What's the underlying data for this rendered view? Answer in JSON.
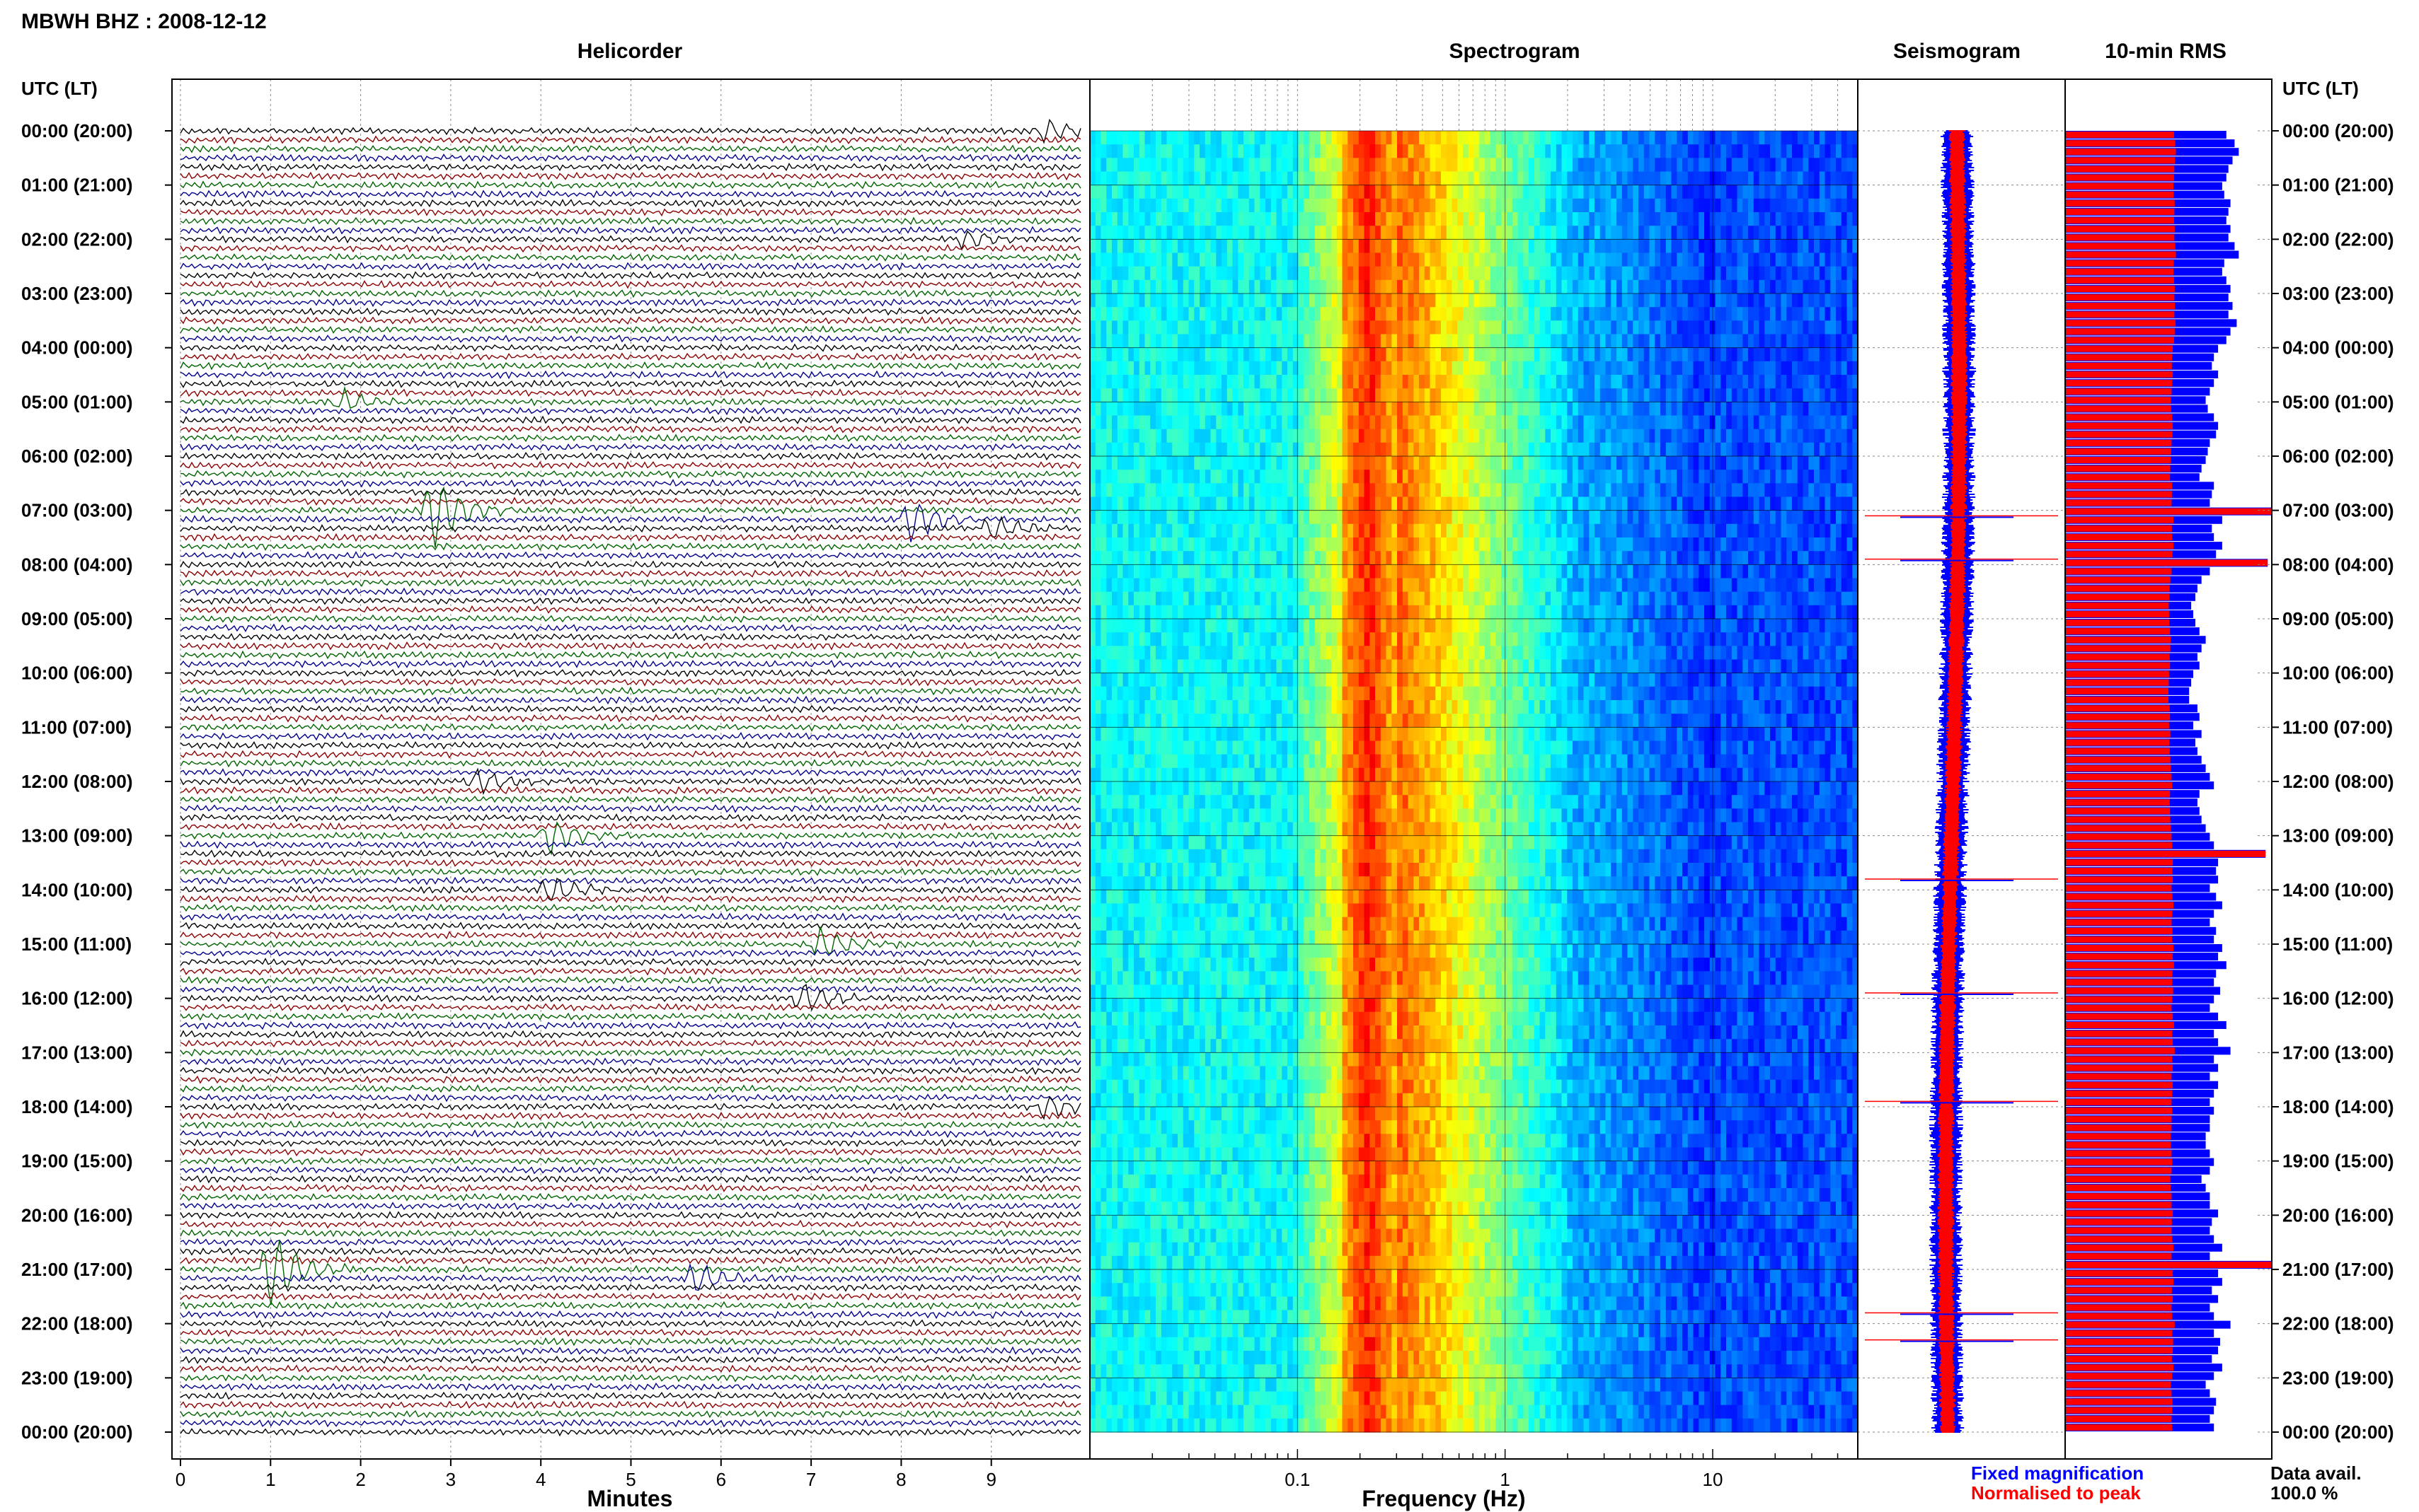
{
  "station_title": "MBWH BHZ : 2008-12-12",
  "panel_titles": {
    "helicorder": "Helicorder",
    "spectrogram": "Spectrogram",
    "seismogram": "Seismogram",
    "rms": "10-min RMS"
  },
  "time_axis_header": "UTC (LT)",
  "time_labels": [
    "00:00 (20:00)",
    "01:00 (21:00)",
    "02:00 (22:00)",
    "03:00 (23:00)",
    "04:00 (00:00)",
    "05:00 (01:00)",
    "06:00 (02:00)",
    "07:00 (03:00)",
    "08:00 (04:00)",
    "09:00 (05:00)",
    "10:00 (06:00)",
    "11:00 (07:00)",
    "12:00 (08:00)",
    "13:00 (09:00)",
    "14:00 (10:00)",
    "15:00 (11:00)",
    "16:00 (12:00)",
    "17:00 (13:00)",
    "18:00 (14:00)",
    "19:00 (15:00)",
    "20:00 (16:00)",
    "21:00 (17:00)",
    "22:00 (18:00)",
    "23:00 (19:00)",
    "00:00 (20:00)"
  ],
  "legend": {
    "fixed": "Fixed magnification",
    "normalised": "Normalised to peak",
    "avail_label": "Data avail.",
    "avail_value": "100.0 %"
  },
  "colors": {
    "trace_cycle": [
      "#000000",
      "#8b0000",
      "#006400",
      "#00008b"
    ],
    "fixed": "#0000ff",
    "normalised": "#ff0000",
    "axis": "#000000",
    "grid": "#888888"
  },
  "chart_data": [
    {
      "type": "line",
      "title": "Helicorder",
      "xlabel": "Minutes",
      "x_ticks": [
        0,
        1,
        2,
        3,
        4,
        5,
        6,
        7,
        8,
        9
      ],
      "xlim": [
        0,
        10
      ],
      "traces_per_hour": 6,
      "trace_minutes": 10,
      "events": [
        {
          "hour": 0,
          "minute": 9.6,
          "amp": 2.0
        },
        {
          "hour": 2,
          "minute": 8.7,
          "amp": 1.6
        },
        {
          "hour": 5,
          "minute": 1.8,
          "amp": 1.8
        },
        {
          "hour": 7,
          "minute": 2.8,
          "amp": 6.0
        },
        {
          "hour": 7,
          "minute": 8.1,
          "amp": 3.5
        },
        {
          "hour": 7,
          "minute": 9.0,
          "amp": 2.0
        },
        {
          "hour": 12,
          "minute": 3.3,
          "amp": 2.0
        },
        {
          "hour": 13,
          "minute": 4.1,
          "amp": 3.0
        },
        {
          "hour": 14,
          "minute": 4.1,
          "amp": 2.2
        },
        {
          "hour": 15,
          "minute": 7.1,
          "amp": 2.5
        },
        {
          "hour": 16,
          "minute": 6.9,
          "amp": 2.5
        },
        {
          "hour": 18,
          "minute": 9.6,
          "amp": 2.0
        },
        {
          "hour": 21,
          "minute": 1.0,
          "amp": 6.0
        },
        {
          "hour": 21,
          "minute": 5.7,
          "amp": 2.5
        }
      ]
    },
    {
      "type": "heatmap",
      "title": "Spectrogram",
      "xlabel": "Frequency (Hz)",
      "x_scale": "log",
      "xlim": [
        0.01,
        50
      ],
      "x_tick_labels": [
        {
          "value": 0.1,
          "label": "0.1"
        },
        {
          "value": 1,
          "label": "1"
        },
        {
          "value": 10,
          "label": "10"
        }
      ],
      "peak_band_hz": [
        0.17,
        0.3
      ],
      "colormap": "jet"
    },
    {
      "type": "line",
      "title": "Seismogram",
      "series": [
        {
          "name": "Fixed magnification",
          "color": "#0000ff"
        },
        {
          "name": "Normalised to peak",
          "color": "#ff0000"
        }
      ],
      "spikes_hours": [
        7.1,
        7.9,
        13.8,
        15.9,
        17.9,
        21.8,
        22.3
      ]
    },
    {
      "type": "bar",
      "title": "10-min RMS",
      "series": [
        {
          "name": "Fixed magnification",
          "color": "#0000ff"
        },
        {
          "name": "Normalised to peak",
          "color": "#ff0000"
        }
      ],
      "fixed_rms": [
        0.78,
        0.82,
        0.84,
        0.81,
        0.79,
        0.78,
        0.76,
        0.77,
        0.8,
        0.79,
        0.78,
        0.8,
        0.79,
        0.82,
        0.84,
        0.77,
        0.76,
        0.78,
        0.8,
        0.79,
        0.81,
        0.79,
        0.83,
        0.8,
        0.78,
        0.74,
        0.72,
        0.71,
        0.74,
        0.72,
        0.7,
        0.68,
        0.69,
        0.72,
        0.74,
        0.73,
        0.7,
        0.69,
        0.68,
        0.66,
        0.65,
        0.72,
        0.71,
        0.7,
        1.0,
        0.76,
        0.71,
        0.72,
        0.76,
        0.73,
        0.98,
        0.7,
        0.66,
        0.64,
        0.63,
        0.61,
        0.62,
        0.63,
        0.65,
        0.68,
        0.66,
        0.64,
        0.65,
        0.62,
        0.61,
        0.6,
        0.6,
        0.64,
        0.65,
        0.62,
        0.66,
        0.63,
        0.64,
        0.66,
        0.68,
        0.7,
        0.72,
        0.65,
        0.64,
        0.65,
        0.66,
        0.68,
        0.7,
        0.72,
        0.97,
        0.74,
        0.73,
        0.74,
        0.7,
        0.73,
        0.76,
        0.72,
        0.7,
        0.73,
        0.72,
        0.76,
        0.74,
        0.78,
        0.73,
        0.72,
        0.75,
        0.72,
        0.7,
        0.74,
        0.78,
        0.72,
        0.74,
        0.8,
        0.72,
        0.74,
        0.7,
        0.74,
        0.72,
        0.7,
        0.72,
        0.7,
        0.7,
        0.68,
        0.68,
        0.7,
        0.72,
        0.7,
        0.66,
        0.68,
        0.7,
        0.7,
        0.74,
        0.71,
        0.7,
        0.72,
        0.76,
        0.7,
        1.0,
        0.74,
        0.76,
        0.71,
        0.74,
        0.7,
        0.72,
        0.8,
        0.72,
        0.75,
        0.74,
        0.71,
        0.76,
        0.72,
        0.68,
        0.7,
        0.73,
        0.72,
        0.7,
        0.72
      ]
    }
  ]
}
